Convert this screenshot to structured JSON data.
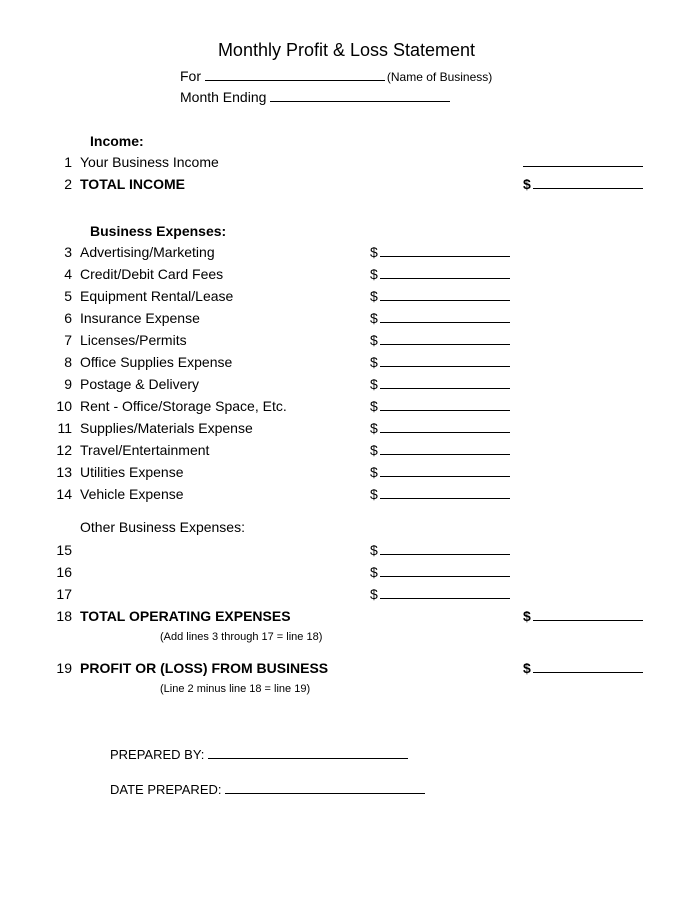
{
  "title": "Monthly Profit & Loss Statement",
  "header": {
    "for_label": "For",
    "for_paren": "(Name of Business)",
    "month_label": "Month Ending"
  },
  "income": {
    "heading": "Income:",
    "rows": [
      {
        "num": "1",
        "label": "Your Business Income"
      },
      {
        "num": "2",
        "label": "TOTAL INCOME",
        "bold": true,
        "right_dollar": true
      }
    ]
  },
  "expenses": {
    "heading": "Business Expenses:",
    "rows": [
      {
        "num": "3",
        "label": "Advertising/Marketing"
      },
      {
        "num": "4",
        "label": "Credit/Debit Card Fees"
      },
      {
        "num": "5",
        "label": "Equipment Rental/Lease"
      },
      {
        "num": "6",
        "label": "Insurance Expense"
      },
      {
        "num": "7",
        "label": "Licenses/Permits"
      },
      {
        "num": "8",
        "label": "Office Supplies Expense"
      },
      {
        "num": "9",
        "label": "Postage & Delivery"
      },
      {
        "num": "10",
        "label": "Rent - Office/Storage Space, Etc."
      },
      {
        "num": "11",
        "label": "Supplies/Materials Expense"
      },
      {
        "num": "12",
        "label": "Travel/Entertainment"
      },
      {
        "num": "13",
        "label": "Utilities Expense"
      },
      {
        "num": "14",
        "label": "Vehicle Expense"
      }
    ]
  },
  "other_expenses": {
    "heading": "Other Business Expenses:",
    "rows": [
      {
        "num": "15",
        "label": ""
      },
      {
        "num": "16",
        "label": ""
      },
      {
        "num": "17",
        "label": ""
      }
    ]
  },
  "totals": {
    "total_op": {
      "num": "18",
      "label": "TOTAL OPERATING EXPENSES",
      "bold": true
    },
    "total_op_formula": "(Add lines 3 through 17 = line 18)",
    "profit": {
      "num": "19",
      "label": "PROFIT OR (LOSS) FROM BUSINESS",
      "bold": true
    },
    "profit_formula": "(Line 2 minus line 18 = line 19)"
  },
  "signature": {
    "prepared_by": "PREPARED BY:",
    "date_prepared": "DATE PREPARED:"
  },
  "style": {
    "background": "#ffffff",
    "text": "#000000",
    "font": "Arial",
    "title_fontsize": 18,
    "body_fontsize": 14,
    "formula_fontsize": 11
  }
}
